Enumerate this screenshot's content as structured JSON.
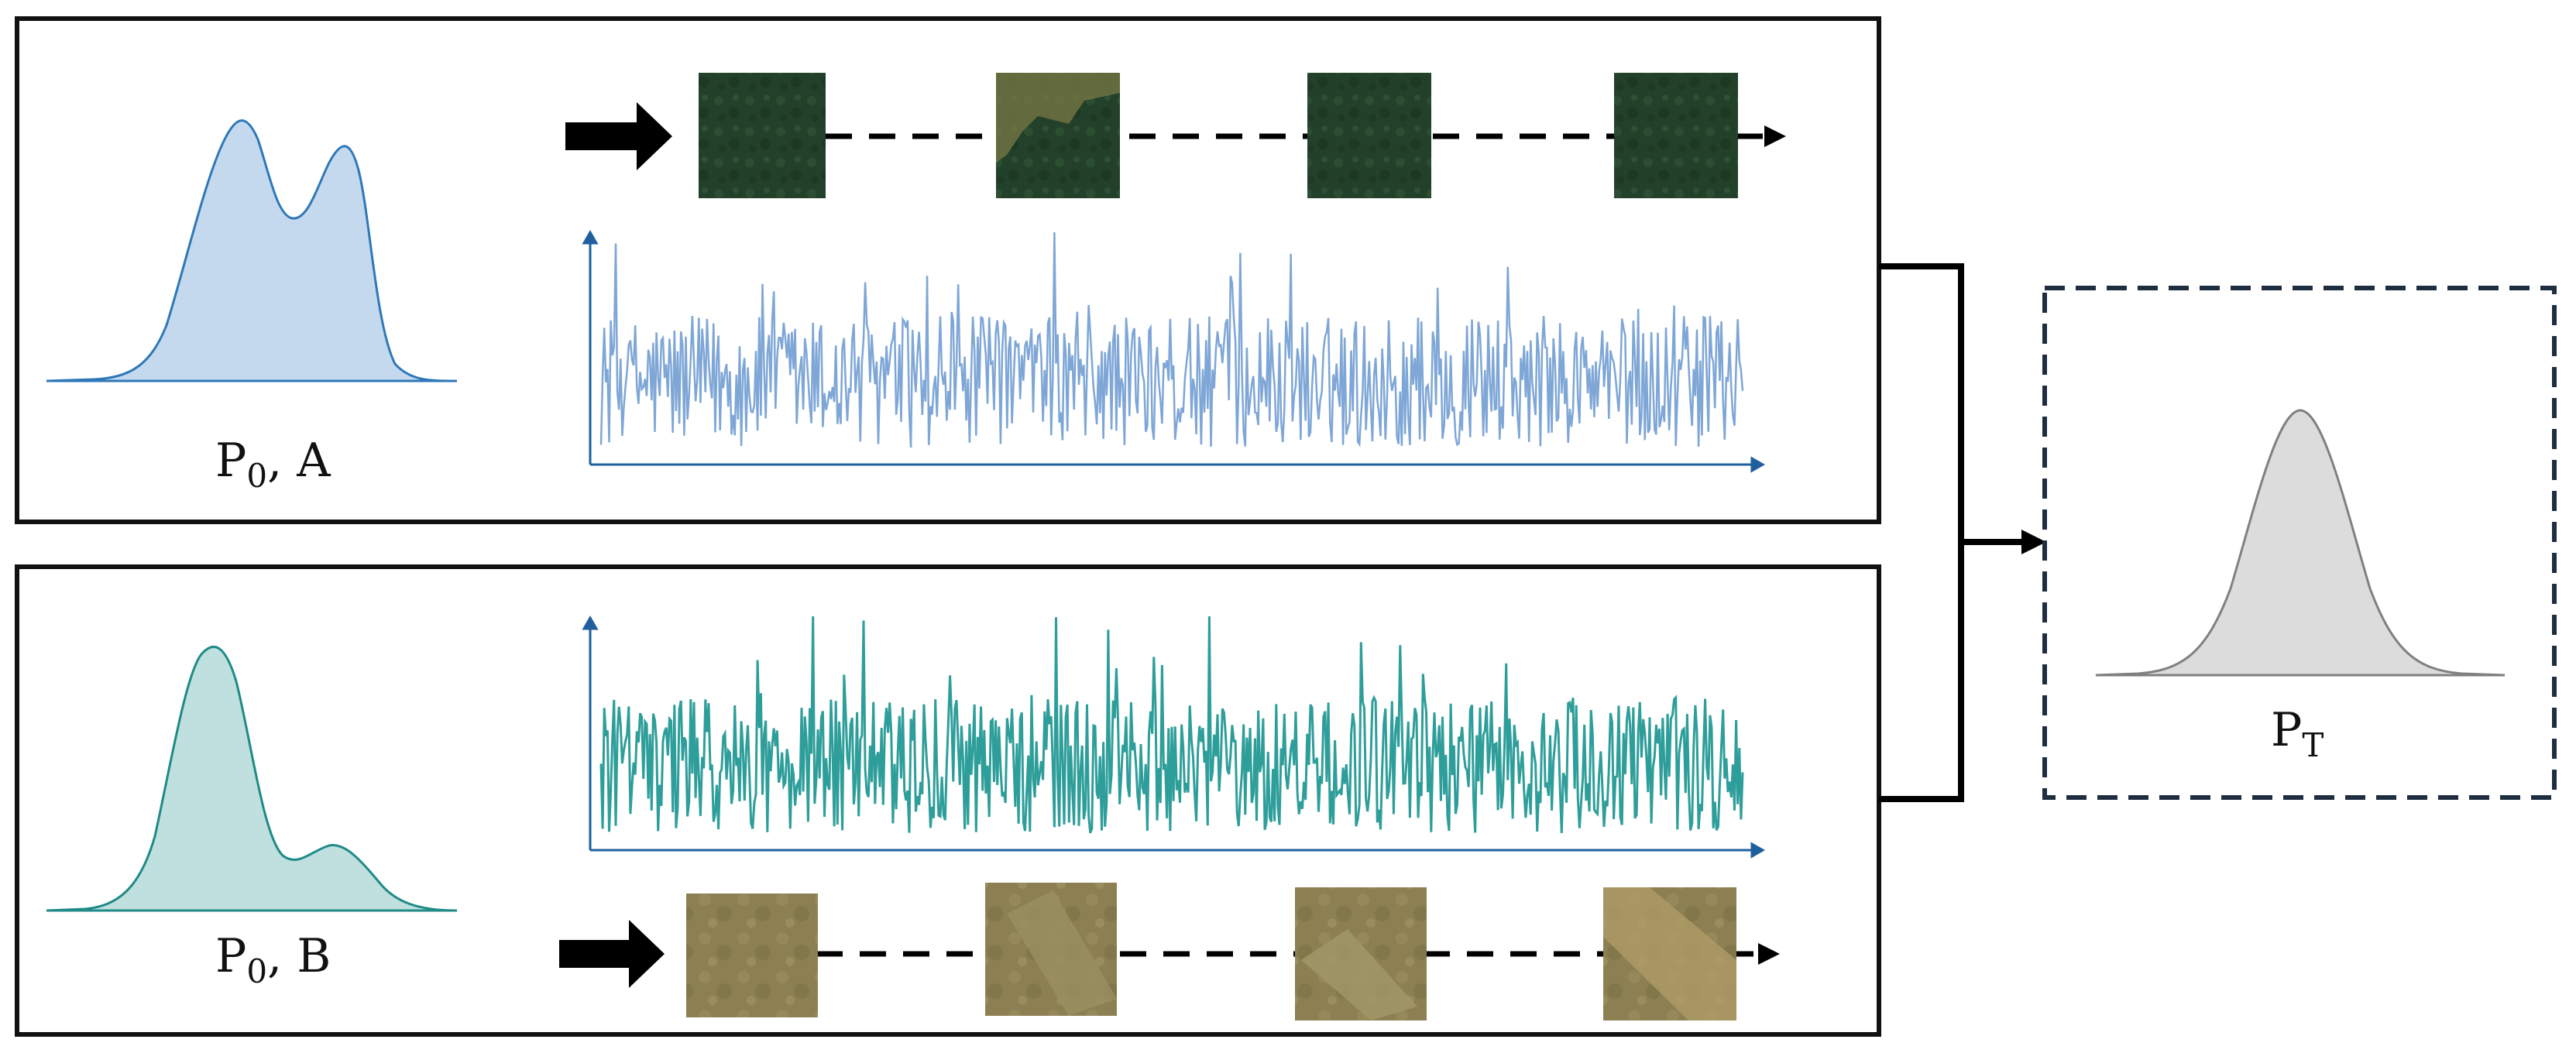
{
  "colors": {
    "panel_border": "#111111",
    "dist_a_fill": "#c5d9ee",
    "dist_a_stroke": "#2e78b8",
    "series_a": "#7ea6d6",
    "dist_b_fill": "#bfe0de",
    "dist_b_stroke": "#1f8a87",
    "series_b": "#2e9e9a",
    "target_fill": "#dcdcdc",
    "target_stroke": "#808080",
    "target_border": "#1e2d40",
    "axis": "#1f5f9e"
  },
  "panel_a": {
    "label_main": "P",
    "label_sub": "0",
    "label_rest": ", A",
    "tiles": [
      "forest-tile-1",
      "forest-tile-2",
      "forest-tile-3",
      "forest-tile-4"
    ],
    "tile_colors": [
      "#24452a",
      "#4d5f34",
      "#24432a",
      "#233f28"
    ]
  },
  "panel_b": {
    "label_main": "P",
    "label_sub": "0",
    "label_rest": ", B",
    "tiles": [
      "cropland-tile-1",
      "cropland-tile-2",
      "cropland-tile-3",
      "cropland-tile-4"
    ],
    "tile_colors": [
      "#8f8453",
      "#8a7d4f",
      "#8b7f52",
      "#9b8a5a"
    ]
  },
  "target": {
    "label_main": "P",
    "label_sub": "T"
  },
  "icons": [
    "thick-arrow-icon",
    "dashed-arrow-icon",
    "merge-arrow-icon"
  ]
}
